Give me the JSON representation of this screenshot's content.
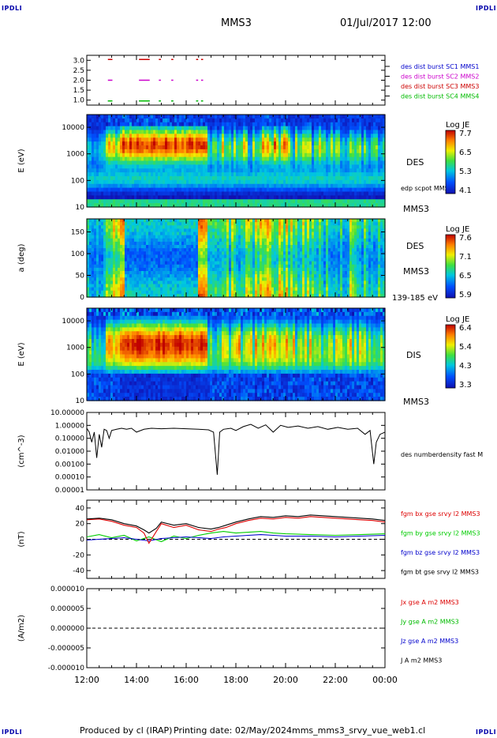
{
  "header": {
    "logo_left": "IPDLI",
    "logo_right": "IPDLI",
    "spacecraft": "MMS3",
    "datetime": "01/Jul/2017 12:00"
  },
  "footer": {
    "produced_by": "Produced by cl (IRAP)",
    "printing_date": "Printing date: 02/May/2024",
    "script_name": "mms_mms3_srvy_vue_web1.cl",
    "logo_left": "IPDLI",
    "logo_right": "IPDLI"
  },
  "time_axis": {
    "ticks": [
      "12:00",
      "14:00",
      "16:00",
      "18:00",
      "20:00",
      "22:00",
      "00:00"
    ],
    "range_hours": [
      12,
      24
    ]
  },
  "colors": {
    "mms1": "#0000cc",
    "mms2": "#cc00cc",
    "mms3": "#cc0000",
    "mms4": "#00bb00",
    "bx": "#dd0000",
    "by": "#00cc00",
    "bz": "#0000cc",
    "bt": "#000000"
  },
  "chart_data": [
    {
      "type": "scatter",
      "panel": "burst",
      "ylim": [
        0.8,
        3.2
      ],
      "yticks": [
        "3.0",
        "2.5",
        "2.0",
        "1.5",
        "1.0"
      ],
      "legend": [
        {
          "label": "des dist burst SC1 MMS1",
          "color": "#0000cc",
          "level": 1.0
        },
        {
          "label": "des dist burst SC2 MMS2",
          "color": "#cc00cc",
          "level": 2.0
        },
        {
          "label": "des dist burst SC3 MMS3",
          "color": "#cc0000",
          "level": 3.0
        },
        {
          "label": "des dist burst SC4 MMS4",
          "color": "#00bb00",
          "level": 1.0
        }
      ],
      "intervals_hours": [
        [
          12.85,
          13.0
        ],
        [
          14.1,
          14.5
        ],
        [
          14.9,
          14.95
        ],
        [
          15.4,
          15.45
        ],
        [
          16.4,
          16.45
        ],
        [
          16.6,
          16.65
        ]
      ]
    },
    {
      "type": "heatmap",
      "panel": "des_energy",
      "ylabel": "E (eV)",
      "yscale": "log",
      "ylim": [
        10,
        30000
      ],
      "yticks": [
        "10000",
        "1000",
        "100",
        "10"
      ],
      "instrument": "DES",
      "spacecraft": "MMS3",
      "overlay_label": "edp scpot MMS3",
      "colorbar": {
        "title": "Log JE",
        "ticks": [
          "7.7",
          "6.5",
          "5.3",
          "4.1"
        ],
        "range": [
          4.1,
          7.7
        ]
      }
    },
    {
      "type": "heatmap",
      "panel": "des_pitch",
      "ylabel": "a (deg)",
      "ylim": [
        0,
        180
      ],
      "yticks": [
        "150",
        "100",
        "50",
        "0"
      ],
      "instrument": "DES",
      "spacecraft": "MMS3",
      "energy_range": "139-185 eV",
      "colorbar": {
        "title": "Log JE",
        "ticks": [
          "7.6",
          "7.1",
          "6.5",
          "5.9"
        ],
        "range": [
          5.9,
          7.6
        ]
      }
    },
    {
      "type": "heatmap",
      "panel": "dis_energy",
      "ylabel": "E (eV)",
      "yscale": "log",
      "ylim": [
        10,
        30000
      ],
      "yticks": [
        "10000",
        "1000",
        "100",
        "10"
      ],
      "instrument": "DIS",
      "spacecraft": "MMS3",
      "colorbar": {
        "title": "Log JE",
        "ticks": [
          "6.4",
          "5.4",
          "4.3",
          "3.3"
        ],
        "range": [
          3.3,
          6.4
        ]
      }
    },
    {
      "type": "line",
      "panel": "density",
      "ylabel": "(cm^-3)",
      "yscale": "log",
      "ylim": [
        1e-05,
        10
      ],
      "yticks": [
        "10.00000",
        "1.00000",
        "0.10000",
        "0.01000",
        "0.00100",
        "0.00010",
        "0.00001"
      ],
      "series": [
        {
          "name": "des numberdensity fast M",
          "color": "#000000",
          "x": [
            12.0,
            12.1,
            12.2,
            12.3,
            12.4,
            12.5,
            12.6,
            12.7,
            12.8,
            12.9,
            13.0,
            13.2,
            13.4,
            13.6,
            13.8,
            14.0,
            14.3,
            14.6,
            15.0,
            15.5,
            16.0,
            16.5,
            16.9,
            17.1,
            17.25,
            17.35,
            17.5,
            17.8,
            18.0,
            18.3,
            18.6,
            18.9,
            19.2,
            19.5,
            19.8,
            20.1,
            20.5,
            20.9,
            21.3,
            21.7,
            22.1,
            22.5,
            22.9,
            23.2,
            23.4,
            23.55,
            23.65,
            23.8,
            24.0
          ],
          "y": [
            0.6,
            0.3,
            0.05,
            0.3,
            0.003,
            0.2,
            0.02,
            0.5,
            0.4,
            0.1,
            0.4,
            0.5,
            0.6,
            0.5,
            0.6,
            0.3,
            0.5,
            0.6,
            0.55,
            0.6,
            0.55,
            0.5,
            0.45,
            0.3,
            0.00015,
            0.3,
            0.5,
            0.6,
            0.4,
            0.8,
            1.2,
            0.6,
            1.1,
            0.3,
            1.0,
            0.7,
            0.9,
            0.6,
            0.8,
            0.5,
            0.7,
            0.5,
            0.6,
            0.2,
            0.4,
            0.001,
            0.05,
            0.2,
            0.3
          ]
        }
      ]
    },
    {
      "type": "line",
      "panel": "fgm",
      "ylabel": "(nT)",
      "ylim": [
        -50,
        50
      ],
      "yticks": [
        "40",
        "20",
        "0",
        "-20",
        "-40"
      ],
      "series": [
        {
          "name": "fgm bx gse srvy l2 MMS3",
          "color": "#dd0000",
          "x": [
            12.0,
            12.5,
            13.0,
            13.5,
            14.0,
            14.3,
            14.5,
            14.8,
            15.0,
            15.5,
            16.0,
            16.5,
            17.0,
            17.3,
            17.6,
            18.0,
            18.5,
            19.0,
            19.5,
            20.0,
            20.5,
            21.0,
            21.5,
            22.0,
            22.5,
            23.0,
            23.5,
            24.0
          ],
          "y": [
            25,
            26,
            23,
            18,
            15,
            8,
            -5,
            10,
            20,
            15,
            18,
            12,
            10,
            13,
            15,
            20,
            24,
            27,
            26,
            28,
            27,
            29,
            28,
            27,
            26,
            25,
            24,
            22
          ]
        },
        {
          "name": "fgm by gse srvy l2 MMS3",
          "color": "#00cc00",
          "x": [
            12.0,
            12.5,
            13.0,
            13.5,
            14.0,
            14.5,
            15.0,
            15.5,
            16.0,
            16.5,
            17.0,
            17.5,
            18.0,
            18.5,
            19.0,
            19.5,
            20.0,
            21.0,
            22.0,
            23.0,
            24.0
          ],
          "y": [
            3,
            6,
            2,
            5,
            -2,
            3,
            -3,
            4,
            1,
            5,
            8,
            10,
            8,
            9,
            10,
            8,
            7,
            6,
            5,
            6,
            7
          ]
        },
        {
          "name": "fgm bz gse srvy l2 MMS3",
          "color": "#0000cc",
          "x": [
            12.0,
            12.5,
            13.0,
            13.5,
            14.0,
            14.5,
            15.0,
            15.5,
            16.0,
            16.5,
            17.0,
            17.5,
            18.0,
            18.5,
            19.0,
            19.5,
            20.0,
            21.0,
            22.0,
            23.0,
            24.0
          ],
          "y": [
            -1,
            0,
            1,
            2,
            0,
            -2,
            1,
            2,
            3,
            2,
            1,
            3,
            4,
            5,
            6,
            5,
            4,
            4,
            3,
            4,
            5
          ]
        },
        {
          "name": "fgm bt gse srvy l2 MMS3",
          "color": "#000000",
          "x": [
            12.0,
            12.5,
            13.0,
            13.5,
            14.0,
            14.3,
            14.5,
            14.8,
            15.0,
            15.5,
            16.0,
            16.5,
            17.0,
            17.3,
            17.6,
            18.0,
            18.5,
            19.0,
            19.5,
            20.0,
            20.5,
            21.0,
            21.5,
            22.0,
            22.5,
            23.0,
            23.5,
            24.0
          ],
          "y": [
            26,
            27,
            25,
            20,
            17,
            12,
            8,
            14,
            22,
            18,
            20,
            15,
            13,
            15,
            18,
            22,
            26,
            29,
            28,
            30,
            29,
            31,
            30,
            29,
            28,
            27,
            26,
            24
          ]
        }
      ]
    },
    {
      "type": "line",
      "panel": "current",
      "ylabel": "(A/m2)",
      "ylim": [
        -1e-05,
        1e-05
      ],
      "yticks": [
        "0.000010",
        "0.000005",
        "0.000000",
        "-0.000005",
        "-0.000010"
      ],
      "series": [
        {
          "name": "Jx gse A m2 MMS3",
          "color": "#dd0000"
        },
        {
          "name": "Jy gse A m2 MMS3",
          "color": "#00bb00"
        },
        {
          "name": "Jz gse A m2 MMS3",
          "color": "#0000cc"
        },
        {
          "name": "J A m2 MMS3",
          "color": "#000000"
        }
      ]
    }
  ]
}
